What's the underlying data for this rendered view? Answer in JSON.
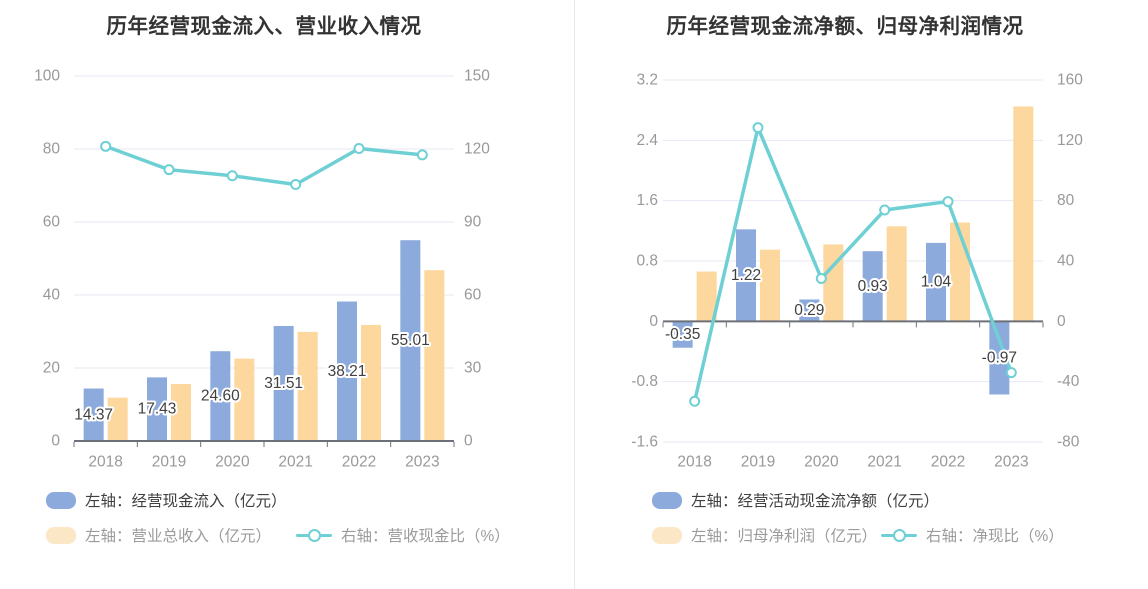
{
  "colors": {
    "bar_blue": "#8CAADC",
    "bar_orange": "#FCD79E",
    "legend_orange_swatch": "#FBE7C5",
    "line_teal": "#6ED0D4",
    "grid": "#E5EAF4",
    "axis_line": "#6E7079",
    "axis_text": "#999999",
    "title_text": "#333333",
    "value_label": "#404040",
    "legend_text_primary": "#404040",
    "legend_text_secondary": "#9B9B9B",
    "divider": "#E8E8E8"
  },
  "chart_data": [
    {
      "type": "bar+line",
      "title": "历年经营现金流入、营业收入情况",
      "categories": [
        "2018",
        "2019",
        "2020",
        "2021",
        "2022",
        "2023"
      ],
      "series": [
        {
          "name": "左轴：经营现金流入（亿元）",
          "type": "bar",
          "axis": "left",
          "color_key": "bar_blue",
          "values": [
            14.37,
            17.43,
            24.6,
            31.51,
            38.21,
            55.01
          ],
          "data_labels": [
            "14.37",
            "17.43",
            "24.60",
            "31.51",
            "38.21",
            "55.01"
          ]
        },
        {
          "name": "左轴：营业总收入（亿元）",
          "type": "bar",
          "axis": "left",
          "color_key": "bar_orange",
          "values": [
            11.87,
            15.63,
            22.57,
            29.9,
            31.8,
            46.8
          ]
        },
        {
          "name": "右轴：营收现金比（%）",
          "type": "line",
          "axis": "right",
          "color_key": "line_teal",
          "values": [
            121.1,
            111.5,
            109.0,
            105.4,
            120.2,
            117.6
          ]
        }
      ],
      "left_axis": {
        "min": 0,
        "max": 100,
        "ticks": [
          0,
          20,
          40,
          60,
          80,
          100
        ],
        "tick_labels": [
          "0",
          "20",
          "40",
          "60",
          "80",
          "100"
        ]
      },
      "right_axis": {
        "min": 0,
        "max": 150,
        "ticks": [
          0,
          30,
          60,
          90,
          120,
          150
        ],
        "tick_labels": [
          "0",
          "30",
          "60",
          "90",
          "120",
          "150"
        ]
      },
      "grid": true,
      "legend_position": "bottom-left"
    },
    {
      "type": "bar+line",
      "title": "历年经营现金流净额、归母净利润情况",
      "categories": [
        "2018",
        "2019",
        "2020",
        "2021",
        "2022",
        "2023"
      ],
      "series": [
        {
          "name": "左轴：经营活动现金流净额（亿元）",
          "type": "bar",
          "axis": "left",
          "color_key": "bar_blue",
          "values": [
            -0.35,
            1.22,
            0.29,
            0.93,
            1.04,
            -0.97
          ],
          "data_labels": [
            "-0.35",
            "1.22",
            "0.29",
            "0.93",
            "1.04",
            "-0.97"
          ]
        },
        {
          "name": "左轴：归母净利润（亿元）",
          "type": "bar",
          "axis": "left",
          "color_key": "bar_orange",
          "values": [
            0.66,
            0.95,
            1.02,
            1.26,
            1.31,
            2.85
          ]
        },
        {
          "name": "右轴：净现比（%）",
          "type": "line",
          "axis": "right",
          "color_key": "line_teal",
          "values": [
            -53.0,
            128.4,
            28.4,
            73.8,
            79.4,
            -34.0
          ]
        }
      ],
      "left_axis": {
        "min": -1.6,
        "max": 3.2,
        "ticks": [
          -1.6,
          -0.8,
          0,
          0.8,
          1.6,
          2.4,
          3.2
        ],
        "tick_labels": [
          "-1.6",
          "-0.8",
          "0",
          "0.8",
          "1.6",
          "2.4",
          "3.2"
        ]
      },
      "right_axis": {
        "min": -80,
        "max": 160,
        "ticks": [
          -80,
          -40,
          0,
          40,
          80,
          120,
          160
        ],
        "tick_labels": [
          "-80",
          "-40",
          "0",
          "40",
          "80",
          "120",
          "160"
        ]
      },
      "grid": true,
      "legend_position": "bottom-left"
    }
  ]
}
